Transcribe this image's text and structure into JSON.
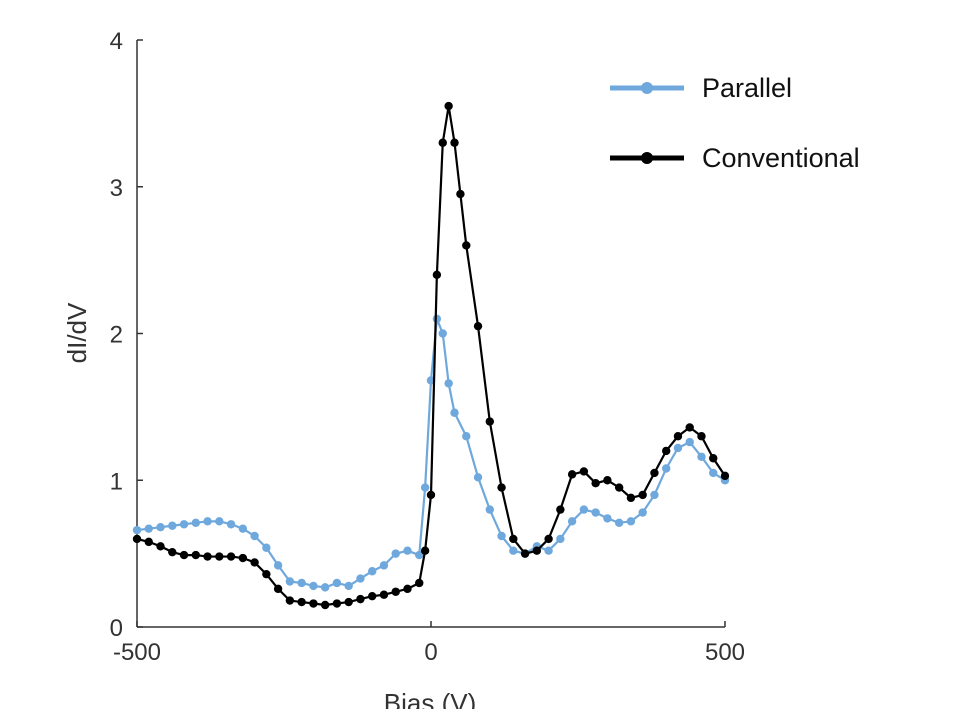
{
  "chart_data": {
    "type": "line",
    "xlabel": "Bias (V)",
    "ylabel": "dI/dV",
    "xlim": [
      -500,
      500
    ],
    "ylim": [
      0,
      4
    ],
    "xticks": [
      -500,
      0,
      500
    ],
    "yticks": [
      0,
      1,
      2,
      3,
      4
    ],
    "grid": false,
    "legend": "top-right",
    "series": [
      {
        "name": "Parallel",
        "color": "#6fa8dc",
        "x": [
          -500,
          -480,
          -460,
          -440,
          -420,
          -400,
          -380,
          -360,
          -340,
          -320,
          -300,
          -280,
          -260,
          -240,
          -220,
          -200,
          -180,
          -160,
          -140,
          -120,
          -100,
          -80,
          -60,
          -40,
          -20,
          -10,
          0,
          10,
          20,
          30,
          40,
          60,
          80,
          100,
          120,
          140,
          160,
          180,
          200,
          220,
          240,
          260,
          280,
          300,
          320,
          340,
          360,
          380,
          400,
          420,
          440,
          460,
          480,
          500
        ],
        "y": [
          0.66,
          0.67,
          0.68,
          0.69,
          0.7,
          0.71,
          0.72,
          0.72,
          0.7,
          0.67,
          0.62,
          0.54,
          0.42,
          0.31,
          0.3,
          0.28,
          0.27,
          0.3,
          0.28,
          0.33,
          0.38,
          0.42,
          0.5,
          0.52,
          0.49,
          0.95,
          1.68,
          2.1,
          2.0,
          1.66,
          1.46,
          1.3,
          1.02,
          0.8,
          0.62,
          0.52,
          0.5,
          0.55,
          0.52,
          0.6,
          0.72,
          0.8,
          0.78,
          0.74,
          0.71,
          0.72,
          0.78,
          0.9,
          1.08,
          1.22,
          1.26,
          1.16,
          1.05,
          1.0
        ]
      },
      {
        "name": "Conventional",
        "color": "#000000",
        "x": [
          -500,
          -480,
          -460,
          -440,
          -420,
          -400,
          -380,
          -360,
          -340,
          -320,
          -300,
          -280,
          -260,
          -240,
          -220,
          -200,
          -180,
          -160,
          -140,
          -120,
          -100,
          -80,
          -60,
          -40,
          -20,
          -10,
          0,
          10,
          20,
          30,
          40,
          50,
          60,
          80,
          100,
          120,
          140,
          160,
          180,
          200,
          220,
          240,
          260,
          280,
          300,
          320,
          340,
          360,
          380,
          400,
          420,
          440,
          460,
          480,
          500
        ],
        "y": [
          0.6,
          0.58,
          0.55,
          0.51,
          0.49,
          0.49,
          0.48,
          0.48,
          0.48,
          0.47,
          0.44,
          0.36,
          0.26,
          0.18,
          0.17,
          0.16,
          0.15,
          0.16,
          0.17,
          0.19,
          0.21,
          0.22,
          0.24,
          0.26,
          0.3,
          0.52,
          0.9,
          2.4,
          3.3,
          3.55,
          3.3,
          2.95,
          2.6,
          2.05,
          1.4,
          0.95,
          0.6,
          0.5,
          0.52,
          0.6,
          0.8,
          1.04,
          1.06,
          0.98,
          1.0,
          0.95,
          0.88,
          0.9,
          1.05,
          1.2,
          1.3,
          1.36,
          1.3,
          1.15,
          1.03
        ]
      }
    ]
  }
}
